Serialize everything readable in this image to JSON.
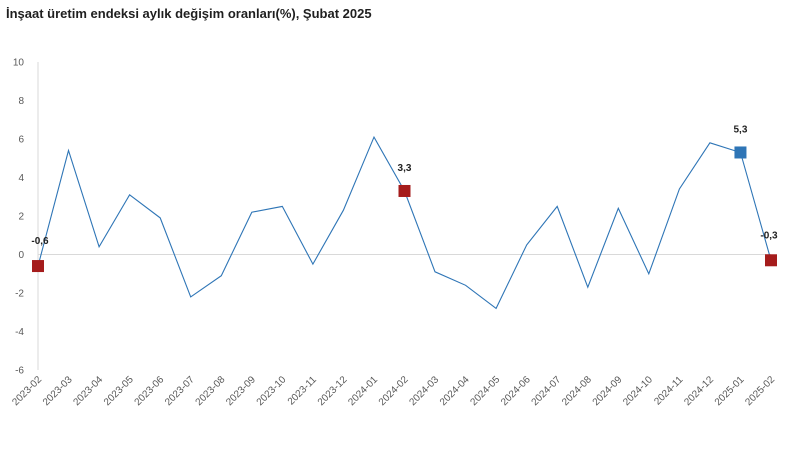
{
  "chart_data": {
    "type": "line",
    "title": "İnşaat üretim endeksi aylık değişim oranları(%), Şubat 2025",
    "xlabel": "",
    "ylabel": "",
    "ylim": [
      -6,
      10
    ],
    "yticks": [
      -6,
      -4,
      -2,
      0,
      2,
      4,
      6,
      8,
      10
    ],
    "grid": false,
    "categories": [
      "2023-02",
      "2023-03",
      "2023-04",
      "2023-05",
      "2023-06",
      "2023-07",
      "2023-08",
      "2023-09",
      "2023-10",
      "2023-11",
      "2023-12",
      "2024-01",
      "2024-02",
      "2024-03",
      "2024-04",
      "2024-05",
      "2024-06",
      "2024-07",
      "2024-08",
      "2024-09",
      "2024-10",
      "2024-11",
      "2024-12",
      "2025-01",
      "2025-02"
    ],
    "series": [
      {
        "values": [
          -0.6,
          5.4,
          0.4,
          3.1,
          1.9,
          -2.2,
          -1.1,
          2.2,
          2.5,
          -0.5,
          2.3,
          6.1,
          3.3,
          -0.9,
          -1.6,
          -2.8,
          0.5,
          2.5,
          -1.7,
          2.4,
          -1.0,
          3.4,
          5.8,
          5.3,
          -0.3
        ],
        "color": "#2e75b6"
      }
    ],
    "highlighted_points": [
      {
        "category": "2023-02",
        "value": -0.6,
        "label": "-0,6",
        "color": "#a51c1c"
      },
      {
        "category": "2024-02",
        "value": 3.3,
        "label": "3,3",
        "color": "#a51c1c"
      },
      {
        "category": "2025-01",
        "value": 5.3,
        "label": "5,3",
        "color": "#2e75b6"
      },
      {
        "category": "2025-02",
        "value": -0.3,
        "label": "-0,3",
        "color": "#a51c1c"
      }
    ]
  }
}
